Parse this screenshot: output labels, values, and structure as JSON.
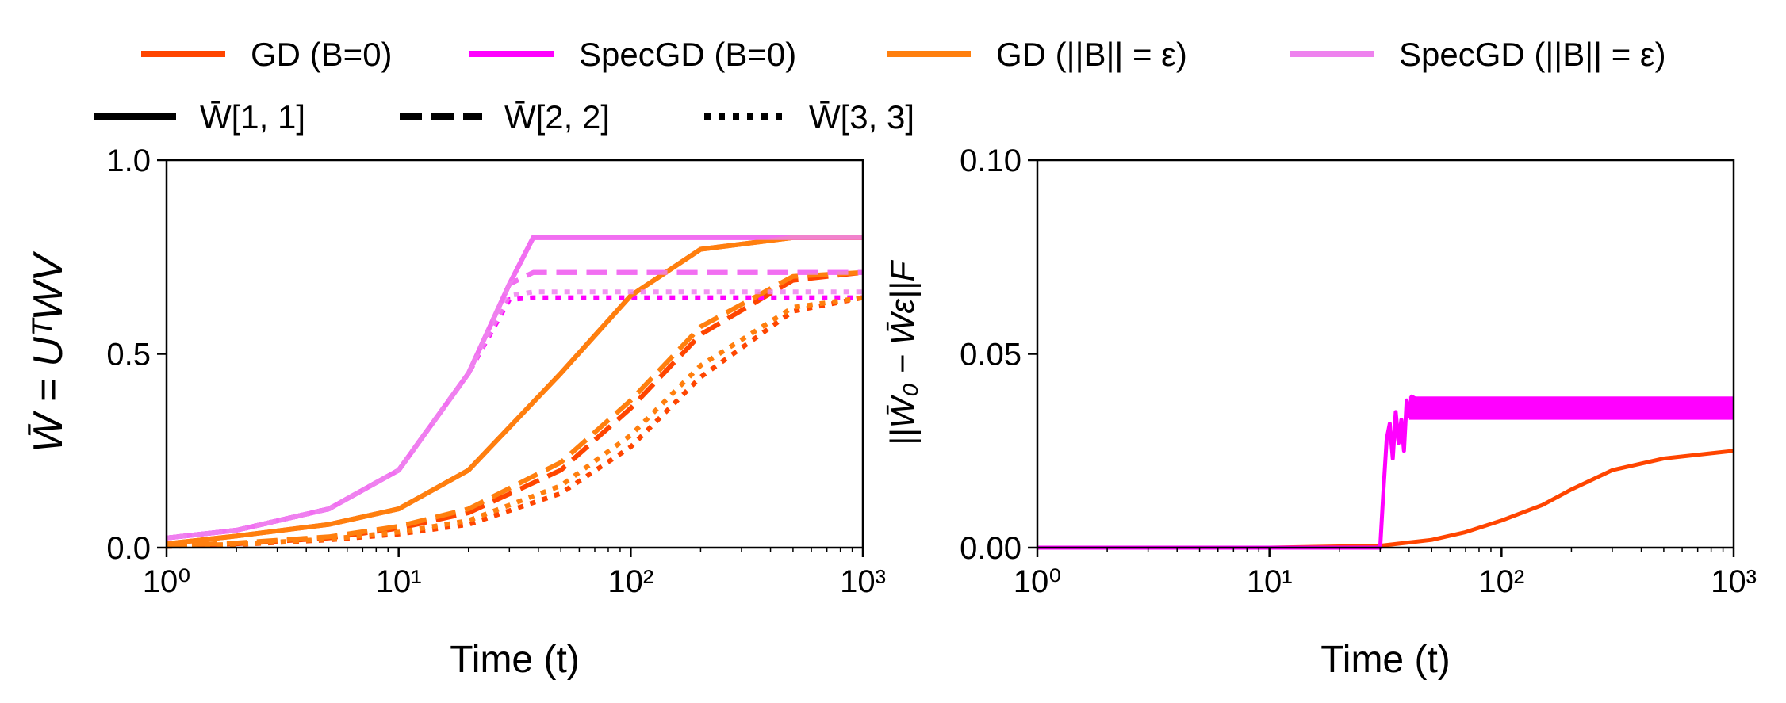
{
  "chart_data": [
    {
      "id": "left",
      "type": "line",
      "title": "",
      "xlabel": "Time (t)",
      "ylabel": "W̄ = UᵀWV",
      "xscale": "log",
      "xlim": [
        1,
        1000
      ],
      "ylim": [
        0,
        1.0
      ],
      "yticks": [
        0.0,
        0.5,
        1.0
      ],
      "ytick_labels": [
        "0.0",
        "0.5",
        "1.0"
      ],
      "xticks": [
        1,
        10,
        100,
        1000
      ],
      "xtick_labels": [
        "10⁰",
        "10¹",
        "10²",
        "10³"
      ],
      "series": [
        {
          "name": "GD (B=0) W̄[1,1]",
          "method": "gd",
          "style": "solid",
          "color": "#ff4500",
          "x": [
            1,
            2,
            5,
            10,
            20,
            50,
            100,
            200,
            500,
            1000
          ],
          "values": [
            0.01,
            0.03,
            0.06,
            0.1,
            0.2,
            0.45,
            0.65,
            0.77,
            0.8,
            0.8
          ]
        },
        {
          "name": "GD (B=0) W̄[2,2]",
          "method": "gd",
          "style": "dashed",
          "color": "#ff4500",
          "x": [
            1,
            2,
            5,
            10,
            20,
            50,
            100,
            200,
            500,
            1000
          ],
          "values": [
            0.005,
            0.01,
            0.025,
            0.05,
            0.09,
            0.2,
            0.36,
            0.55,
            0.69,
            0.71
          ]
        },
        {
          "name": "GD (B=0) W̄[3,3]",
          "method": "gd",
          "style": "dotted",
          "color": "#ff4500",
          "x": [
            1,
            2,
            5,
            10,
            20,
            50,
            100,
            200,
            500,
            1000
          ],
          "values": [
            0.003,
            0.008,
            0.02,
            0.035,
            0.06,
            0.14,
            0.26,
            0.44,
            0.61,
            0.645
          ]
        },
        {
          "name": "SpecGD (B=0) W̄[1,1]",
          "method": "specgd",
          "style": "solid",
          "color": "#ff00ff",
          "x": [
            1,
            2,
            5,
            10,
            20,
            30,
            38,
            50,
            100,
            1000
          ],
          "values": [
            0.025,
            0.045,
            0.1,
            0.2,
            0.45,
            0.68,
            0.8,
            0.8,
            0.8,
            0.8
          ]
        },
        {
          "name": "SpecGD (B=0) W̄[2,2]",
          "method": "specgd",
          "style": "dashed",
          "color": "#ff00ff",
          "x": [
            1,
            2,
            5,
            10,
            20,
            30,
            38,
            50,
            100,
            1000
          ],
          "values": [
            0.025,
            0.045,
            0.1,
            0.2,
            0.45,
            0.68,
            0.71,
            0.71,
            0.71,
            0.71
          ]
        },
        {
          "name": "SpecGD (B=0) W̄[3,3]",
          "method": "specgd",
          "style": "dotted",
          "color": "#ff00ff",
          "x": [
            1,
            2,
            5,
            10,
            20,
            30,
            38,
            50,
            100,
            1000
          ],
          "values": [
            0.025,
            0.045,
            0.1,
            0.2,
            0.45,
            0.64,
            0.645,
            0.645,
            0.645,
            0.645
          ]
        },
        {
          "name": "GD (||B||=ε) W̄[1,1]",
          "method": "gd",
          "style": "solid",
          "color": "#ff7f0e",
          "x": [
            1,
            2,
            5,
            10,
            20,
            50,
            100,
            200,
            500,
            1000
          ],
          "values": [
            0.01,
            0.03,
            0.06,
            0.1,
            0.2,
            0.45,
            0.65,
            0.77,
            0.8,
            0.8
          ]
        },
        {
          "name": "GD (||B||=ε) W̄[2,2]",
          "method": "gd",
          "style": "dashed",
          "color": "#ff7f0e",
          "x": [
            1,
            2,
            5,
            10,
            20,
            50,
            100,
            200,
            500,
            1000
          ],
          "values": [
            0.006,
            0.012,
            0.028,
            0.055,
            0.1,
            0.22,
            0.38,
            0.57,
            0.7,
            0.71
          ]
        },
        {
          "name": "GD (||B||=ε) W̄[3,3]",
          "method": "gd",
          "style": "dotted",
          "color": "#ff7f0e",
          "x": [
            1,
            2,
            5,
            10,
            20,
            50,
            100,
            200,
            500,
            1000
          ],
          "values": [
            0.004,
            0.009,
            0.022,
            0.04,
            0.07,
            0.16,
            0.29,
            0.47,
            0.62,
            0.645
          ]
        },
        {
          "name": "SpecGD (||B||=ε) W̄[1,1]",
          "method": "specgd",
          "style": "solid",
          "color": "#ee82ee",
          "x": [
            1,
            2,
            5,
            10,
            20,
            30,
            38,
            50,
            100,
            1000
          ],
          "values": [
            0.025,
            0.045,
            0.1,
            0.2,
            0.45,
            0.68,
            0.8,
            0.8,
            0.8,
            0.8
          ]
        },
        {
          "name": "SpecGD (||B||=ε) W̄[2,2]",
          "method": "specgd",
          "style": "dashed",
          "color": "#ee82ee",
          "x": [
            1,
            2,
            5,
            10,
            20,
            30,
            38,
            50,
            100,
            1000
          ],
          "values": [
            0.025,
            0.045,
            0.1,
            0.2,
            0.45,
            0.68,
            0.71,
            0.71,
            0.71,
            0.71
          ]
        },
        {
          "name": "SpecGD (||B||=ε) W̄[3,3]",
          "method": "specgd",
          "style": "dotted",
          "color": "#ee82ee",
          "x": [
            1,
            2,
            5,
            10,
            20,
            30,
            38,
            50,
            100,
            1000
          ],
          "values": [
            0.025,
            0.045,
            0.1,
            0.2,
            0.45,
            0.65,
            0.66,
            0.66,
            0.66,
            0.66
          ]
        }
      ]
    },
    {
      "id": "right",
      "type": "line",
      "title": "",
      "xlabel": "Time (t)",
      "ylabel": "||W̄₀ − W̄ε||F",
      "xscale": "log",
      "xlim": [
        1,
        1000
      ],
      "ylim": [
        0,
        0.1
      ],
      "yticks": [
        0.0,
        0.05,
        0.1
      ],
      "ytick_labels": [
        "0.00",
        "0.05",
        "0.10"
      ],
      "xticks": [
        1,
        10,
        100,
        1000
      ],
      "xtick_labels": [
        "10⁰",
        "10¹",
        "10²",
        "10³"
      ],
      "series": [
        {
          "name": "GD",
          "color": "#ff4500",
          "style": "solid",
          "x": [
            1,
            10,
            30,
            50,
            70,
            100,
            150,
            200,
            300,
            500,
            1000
          ],
          "values": [
            0,
            0,
            0.0005,
            0.002,
            0.004,
            0.007,
            0.011,
            0.015,
            0.02,
            0.023,
            0.025
          ]
        },
        {
          "name": "SpecGD",
          "color": "#ff00ff",
          "style": "solid",
          "x": [
            1,
            10,
            30,
            31,
            32,
            33,
            34,
            35,
            36,
            37,
            38,
            39,
            40,
            41,
            50,
            100,
            1000
          ],
          "values": [
            0,
            0,
            0,
            0.015,
            0.028,
            0.032,
            0.023,
            0.035,
            0.027,
            0.033,
            0.025,
            0.038,
            0.034,
            0.039,
            0.036,
            0.036,
            0.036
          ],
          "band": {
            "x_start": 40,
            "low": 0.033,
            "high": 0.039
          }
        }
      ]
    }
  ],
  "legend": {
    "row1": [
      {
        "label": "GD (B=0)",
        "color": "#ff4500"
      },
      {
        "label": "SpecGD (B=0)",
        "color": "#ff00ff"
      },
      {
        "label": "GD (||B|| = ε)",
        "color": "#ff7f0e"
      },
      {
        "label": "SpecGD (||B|| = ε)",
        "color": "#ee82ee"
      }
    ],
    "row2": [
      {
        "label": "W̄[1, 1]",
        "style": "solid"
      },
      {
        "label": "W̄[2, 2]",
        "style": "dashed"
      },
      {
        "label": "W̄[3, 3]",
        "style": "dotted"
      }
    ]
  }
}
